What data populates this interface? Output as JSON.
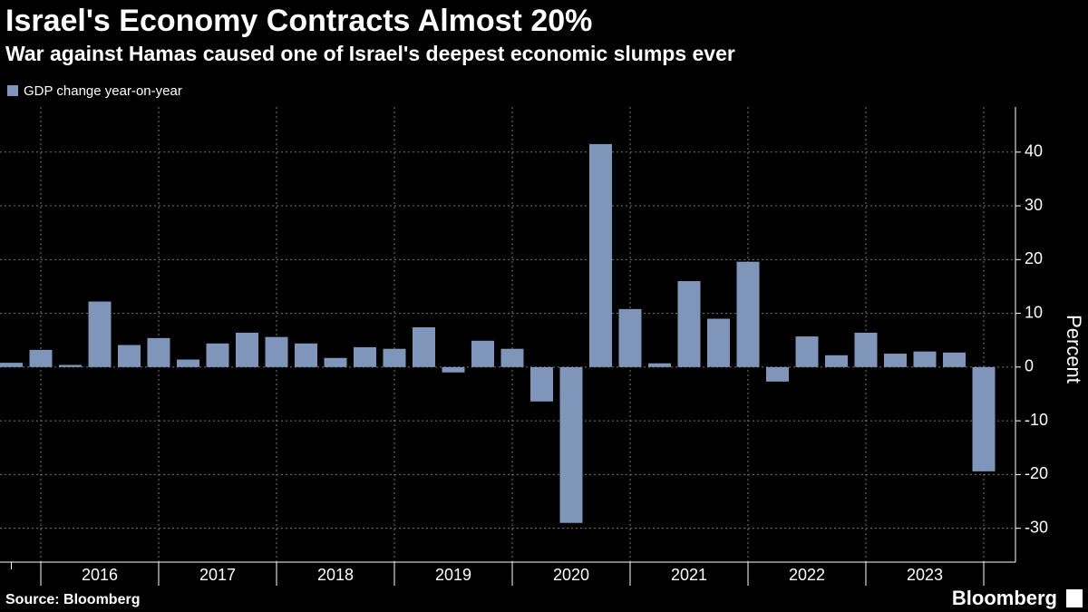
{
  "chart_data": {
    "type": "bar",
    "title": "Israel's Economy Contracts Almost 20%",
    "subtitle": "War against Hamas caused one of Israel's deepest economic slumps ever",
    "y_label": "Percent",
    "source": "Source: Bloomberg",
    "brand": "Bloomberg",
    "categories": [
      null,
      null,
      null,
      null,
      null,
      null,
      null,
      null,
      null,
      null,
      null,
      null,
      null,
      null,
      null,
      null,
      null,
      null,
      null,
      null,
      null,
      null,
      null,
      null,
      null,
      null,
      null,
      null,
      null,
      null,
      null,
      null,
      null,
      null
    ],
    "year_labels": [
      "2016",
      "2017",
      "2018",
      "2019",
      "2020",
      "2021",
      "2022",
      "2023"
    ],
    "series": [
      {
        "name": "GDP change year-on-year",
        "color": "#7f95b9",
        "values": [
          0.8,
          3.2,
          0.4,
          12.2,
          4.1,
          5.4,
          1.4,
          4.4,
          6.4,
          5.6,
          4.4,
          1.7,
          3.7,
          3.4,
          7.4,
          -1.0,
          4.9,
          3.4,
          -6.4,
          -29.0,
          41.5,
          10.8,
          0.7,
          16.0,
          9.0,
          19.6,
          -2.7,
          5.7,
          2.2,
          6.4,
          2.5,
          2.9,
          2.7,
          -19.4
        ]
      }
    ],
    "ylim": [
      -36.3,
      48.4
    ],
    "yticks": [
      -30,
      -20,
      -10,
      0,
      10,
      20,
      30,
      40
    ],
    "grid": true
  }
}
